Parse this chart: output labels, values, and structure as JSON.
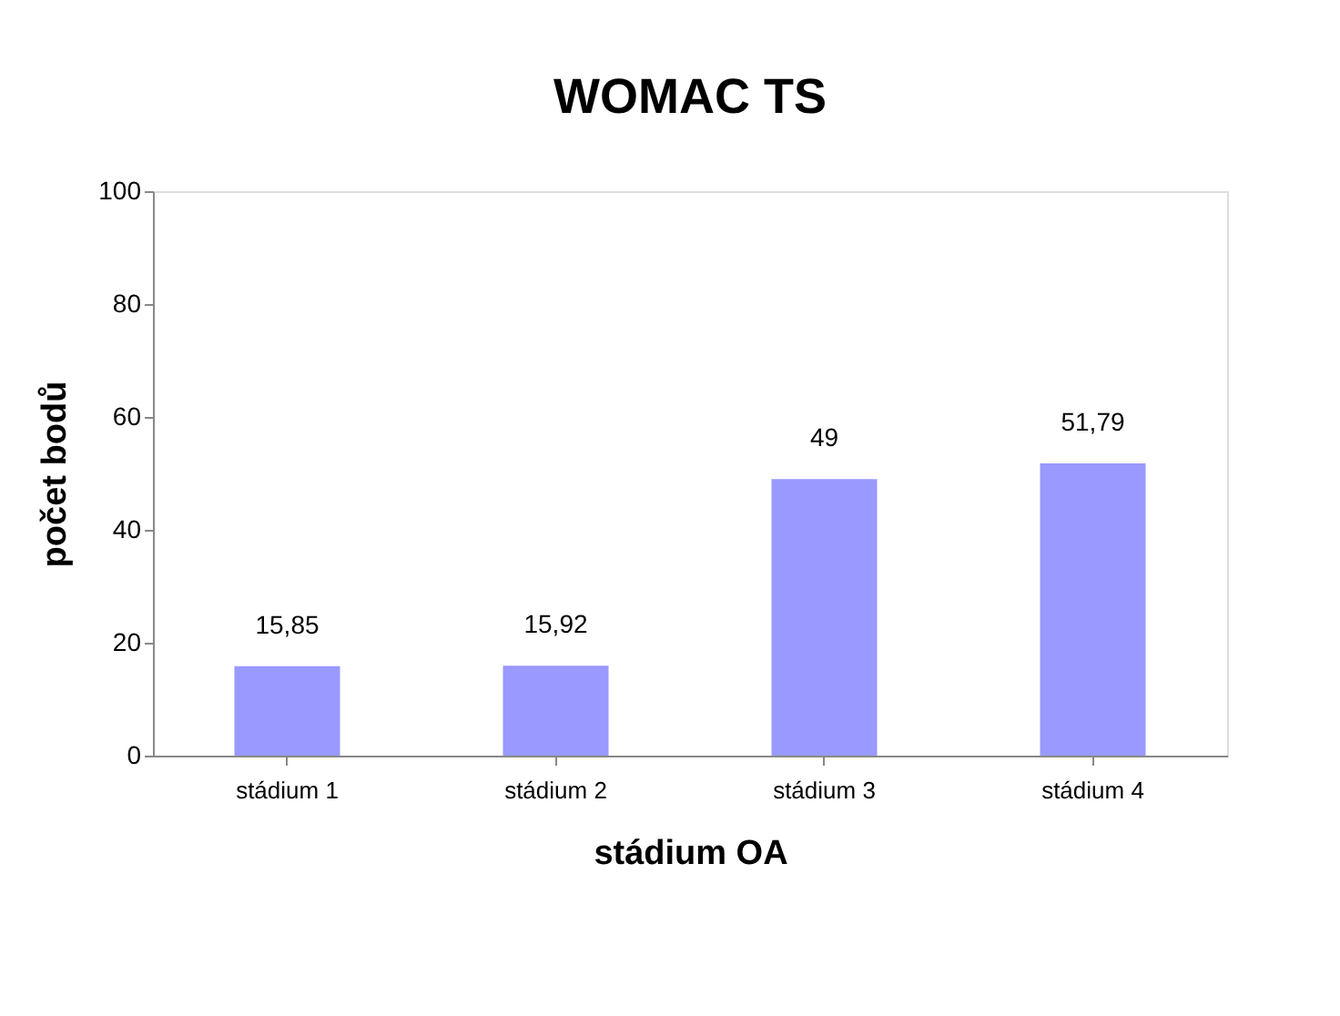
{
  "chart_data": {
    "type": "bar",
    "title": "WOMAC TS",
    "xlabel": "stádium OA",
    "ylabel": "počet bodů",
    "categories": [
      "stádium 1",
      "stádium 2",
      "stádium 3",
      "stádium 4"
    ],
    "values": [
      15.85,
      15.92,
      49,
      51.79
    ],
    "value_labels": [
      "15,85",
      "15,92",
      "49",
      "51,79"
    ],
    "color": "#9999ff",
    "ylim": [
      0,
      100
    ],
    "yticks": [
      0,
      20,
      40,
      60,
      80,
      100
    ],
    "grid": false
  }
}
